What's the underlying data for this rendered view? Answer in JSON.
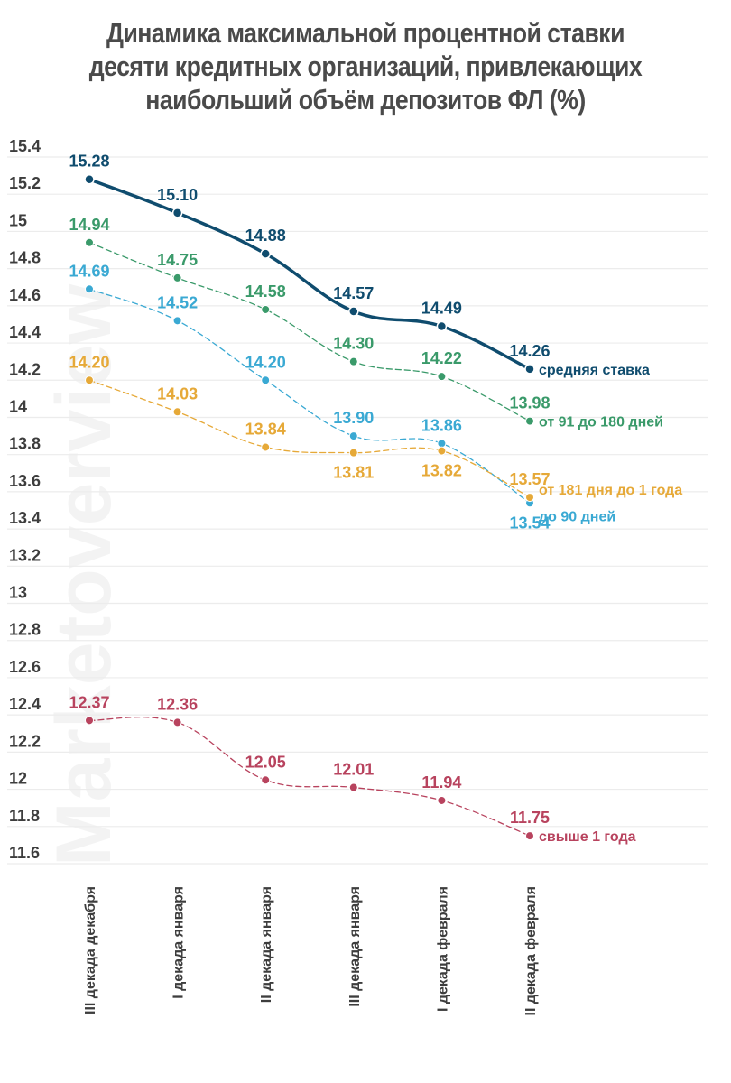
{
  "title_lines": [
    "Динамика максимальной процентной ставки",
    "десяти кредитных организаций, привлекающих",
    "наибольший объём депозитов ФЛ (%)"
  ],
  "watermark": "Marketoverview",
  "chart_data": {
    "type": "line",
    "title": "Динамика максимальной процентной ставки десяти кредитных организаций, привлекающих наибольший объём депозитов ФЛ (%)",
    "xlabel": "",
    "ylabel": "",
    "categories": [
      "III декада декабря",
      "I декада января",
      "II декада января",
      "III декада января",
      "I декада февраля",
      "II декада февраля"
    ],
    "yticks": [
      "15.4",
      "15.2",
      "15",
      "14.8",
      "14.6",
      "14.4",
      "14.2",
      "14",
      "13.8",
      "13.6",
      "13.4",
      "13.2",
      "13",
      "12.8",
      "12.6",
      "12.4",
      "12.2",
      "12",
      "11.8",
      "11.6"
    ],
    "ylim": [
      11.6,
      15.4
    ],
    "grid": true,
    "legend": "inline-right",
    "series": [
      {
        "name": "средняя ставка",
        "color": "#0f4c6e",
        "style": "solid",
        "values": [
          15.28,
          15.1,
          14.88,
          14.57,
          14.49,
          14.26
        ],
        "labels": [
          "15.28",
          "15.10",
          "14.88",
          "14.57",
          "14.49",
          "14.26"
        ]
      },
      {
        "name": "от 91 до 180 дней",
        "color": "#3a9a6a",
        "style": "dashed",
        "values": [
          14.94,
          14.75,
          14.58,
          14.3,
          14.22,
          13.98
        ],
        "labels": [
          "14.94",
          "14.75",
          "14.58",
          "14.30",
          "14.22",
          "13.98"
        ]
      },
      {
        "name": "до 90 дней",
        "color": "#3aa9d3",
        "style": "dashed",
        "values": [
          14.69,
          14.52,
          14.2,
          13.9,
          13.86,
          13.54
        ],
        "labels": [
          "14.69",
          "14.52",
          "14.20",
          "13.90",
          "13.86",
          "13.54"
        ]
      },
      {
        "name": "от 181 дня до 1 года",
        "color": "#e6a938",
        "style": "dashed",
        "values": [
          14.2,
          14.03,
          13.84,
          13.81,
          13.82,
          13.57
        ],
        "labels": [
          "14.20",
          "14.03",
          "13.84",
          "13.81",
          "13.82",
          "13.57"
        ]
      },
      {
        "name": "свыше 1 года",
        "color": "#b8435e",
        "style": "dashed",
        "values": [
          12.37,
          12.36,
          12.05,
          12.01,
          11.94,
          11.75
        ],
        "labels": [
          "12.37",
          "12.36",
          "12.05",
          "12.01",
          "11.94",
          "11.75"
        ]
      }
    ]
  }
}
